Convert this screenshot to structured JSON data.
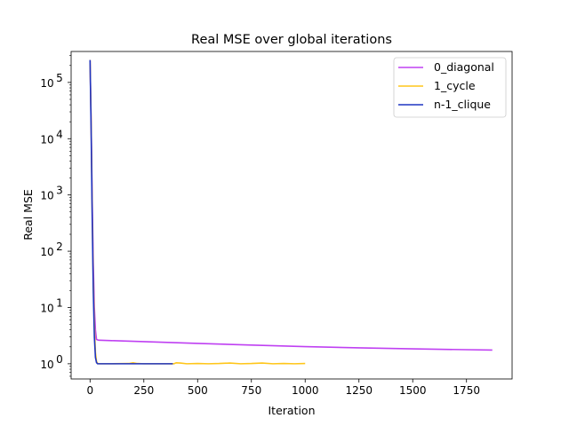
{
  "chart_data": {
    "type": "line",
    "title": "Real MSE over global iterations",
    "xlabel": "Iteration",
    "ylabel": "Real MSE",
    "xlim": [
      -88,
      1962
    ],
    "ylim_log10": [
      -0.27,
      5.55
    ],
    "y_scale": "log",
    "x_ticks": [
      0,
      250,
      500,
      750,
      1000,
      1250,
      1500,
      1750
    ],
    "y_ticks": [
      {
        "value": 1,
        "label": "10",
        "exp": "0"
      },
      {
        "value": 10,
        "label": "10",
        "exp": "1"
      },
      {
        "value": 100,
        "label": "10",
        "exp": "2"
      },
      {
        "value": 1000,
        "label": "10",
        "exp": "3"
      },
      {
        "value": 10000,
        "label": "10",
        "exp": "4"
      },
      {
        "value": 100000,
        "label": "10",
        "exp": "5"
      }
    ],
    "grid": false,
    "legend_position": "upper right",
    "series": [
      {
        "name": "0_diagonal",
        "color": "#bf40f2",
        "x": [
          0,
          5,
          10,
          15,
          20,
          25,
          30,
          40,
          100,
          250,
          500,
          750,
          1000,
          1250,
          1500,
          1750,
          1870
        ],
        "y": [
          250000,
          20000,
          800,
          60,
          10,
          4,
          2.7,
          2.62,
          2.58,
          2.47,
          2.3,
          2.15,
          2.02,
          1.92,
          1.84,
          1.78,
          1.75
        ]
      },
      {
        "name": "1_cycle",
        "color": "#ffc61a",
        "x": [
          0,
          5,
          10,
          15,
          20,
          25,
          30,
          35,
          40,
          100,
          180,
          200,
          220,
          250,
          300,
          390,
          400,
          420,
          450,
          500,
          550,
          600,
          650,
          700,
          750,
          800,
          850,
          900,
          950,
          1000
        ],
        "y": [
          250000,
          20000,
          500,
          30,
          5,
          1.6,
          1.1,
          1.02,
          1.0,
          1.0,
          1.01,
          1.04,
          1.01,
          1.0,
          1.0,
          1.0,
          1.04,
          1.03,
          1.0,
          1.01,
          1.0,
          1.01,
          1.03,
          1.0,
          1.01,
          1.03,
          1.0,
          1.01,
          1.0,
          1.01
        ]
      },
      {
        "name": "n-1_clique",
        "color": "#1f35c2",
        "x": [
          0,
          5,
          10,
          15,
          20,
          25,
          30,
          35,
          40,
          60,
          100,
          150,
          200,
          250,
          300,
          350,
          385
        ],
        "y": [
          250000,
          15000,
          400,
          20,
          3,
          1.3,
          1.05,
          1.0,
          1.0,
          1.0,
          1.0,
          1.0,
          1.0,
          1.0,
          1.0,
          1.0,
          1.0
        ]
      }
    ]
  }
}
